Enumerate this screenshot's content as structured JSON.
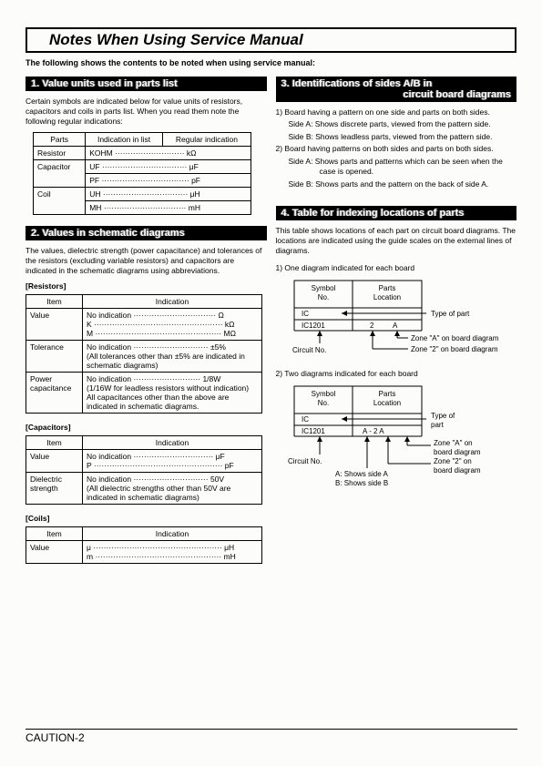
{
  "page_title": "Notes When Using Service Manual",
  "subtitle": "The following shows the contents to be noted when using service manual:",
  "section1": {
    "header": "1. Value units used in parts list",
    "intro": "Certain symbols are indicated below for value units of resistors, capacitors and coils in parts list. When you read them note the following regular indications:",
    "table": {
      "headers": [
        "Parts",
        "Indication in list",
        "Regular indication"
      ],
      "rows": [
        {
          "part": "Resistor",
          "lines": [
            [
              "KOHM",
              "kΩ"
            ]
          ]
        },
        {
          "part": "Capacitor",
          "lines": [
            [
              "UF",
              "μF"
            ],
            [
              "PF",
              "pF"
            ]
          ]
        },
        {
          "part": "Coil",
          "lines": [
            [
              "UH",
              "μH"
            ],
            [
              "MH",
              "mH"
            ]
          ]
        }
      ]
    }
  },
  "section2": {
    "header": "2. Values in schematic diagrams",
    "intro": "The values, dielectric strength (power capacitance) and tolerances of the resistors (excluding variable resistors) and capacitors are indicated in the schematic diagrams using abbreviations.",
    "resistors": {
      "label": "[Resistors]",
      "headers": [
        "Item",
        "Indication"
      ],
      "rows": [
        {
          "item": "Value",
          "ind": "No indication ································ Ω\nK ·················································· kΩ\nM ················································· MΩ"
        },
        {
          "item": "Tolerance",
          "ind": "No indication ····························· ±5%\n(All tolerances other than ±5% are indicated in schematic diagrams)"
        },
        {
          "item": "Power capacitance",
          "ind": "No indication ·························· 1/8W\n(1/16W for leadless resistors without indication)\nAll capacitances other than the above are indicated in schematic diagrams."
        }
      ]
    },
    "capacitors": {
      "label": "[Capacitors]",
      "headers": [
        "Item",
        "Indication"
      ],
      "rows": [
        {
          "item": "Value",
          "ind": "No indication ······························· μF\nP ·················································· pF"
        },
        {
          "item": "Dielectric strength",
          "ind": "No indication ····························· 50V\n(All dielectric strengths other than 50V are indicated in schematic diagrams)"
        }
      ]
    },
    "coils": {
      "label": "[Coils]",
      "headers": [
        "Item",
        "Indication"
      ],
      "rows": [
        {
          "item": "Value",
          "ind": "μ ·················································· μH\nm ················································· mH"
        }
      ]
    }
  },
  "section3": {
    "header_l1": "3. Identifications of sides A/B in",
    "header_l2": "circuit board diagrams",
    "items": [
      "1)  Board having a pattern on one side and parts on both sides.",
      "Side A:  Shows discrete parts, viewed from the pattern side.",
      "Side B:  Shows leadless parts, viewed from the pattern side.",
      "2)  Board having patterns on both sides and parts on both sides.",
      "Side A:  Shows parts and patterns which can be seen when the case is opened.",
      "Side B:  Shows parts and the pattern on the back of side A."
    ]
  },
  "section4": {
    "header": "4. Table for indexing locations of parts",
    "intro": "This table shows locations of each part on circuit board diagrams. The locations are indicated using the guide scales on the external lines of diagrams.",
    "diag1": {
      "caption": "1) One diagram indicated for each board",
      "col1": "Symbol No.",
      "col2": "Parts Location",
      "row1_c1": "IC",
      "row2_c1": "IC1201",
      "row2_c2a": "2",
      "row2_c2b": "A",
      "lbl_type": "Type of part",
      "lbl_zoneA": "Zone \"A\" on board diagram",
      "lbl_zone2": "Zone \"2\" on board diagram",
      "lbl_circuit": "Circuit No."
    },
    "diag2": {
      "caption": "2) Two diagrams indicated for each board",
      "col1": "Symbol No.",
      "col2": "Parts Location",
      "row1_c1": "IC",
      "row2_c1": "IC1201",
      "row2_c2": "A - 2  A",
      "lbl_type": "Type of part",
      "lbl_zoneA": "Zone \"A\" on board diagram",
      "lbl_zone2": "Zone \"2\" on board diagram",
      "lbl_circuit": "Circuit No.",
      "lbl_sideA": "A: Shows side A",
      "lbl_sideB": "B: Shows side B"
    }
  },
  "footer": "CAUTION-2"
}
